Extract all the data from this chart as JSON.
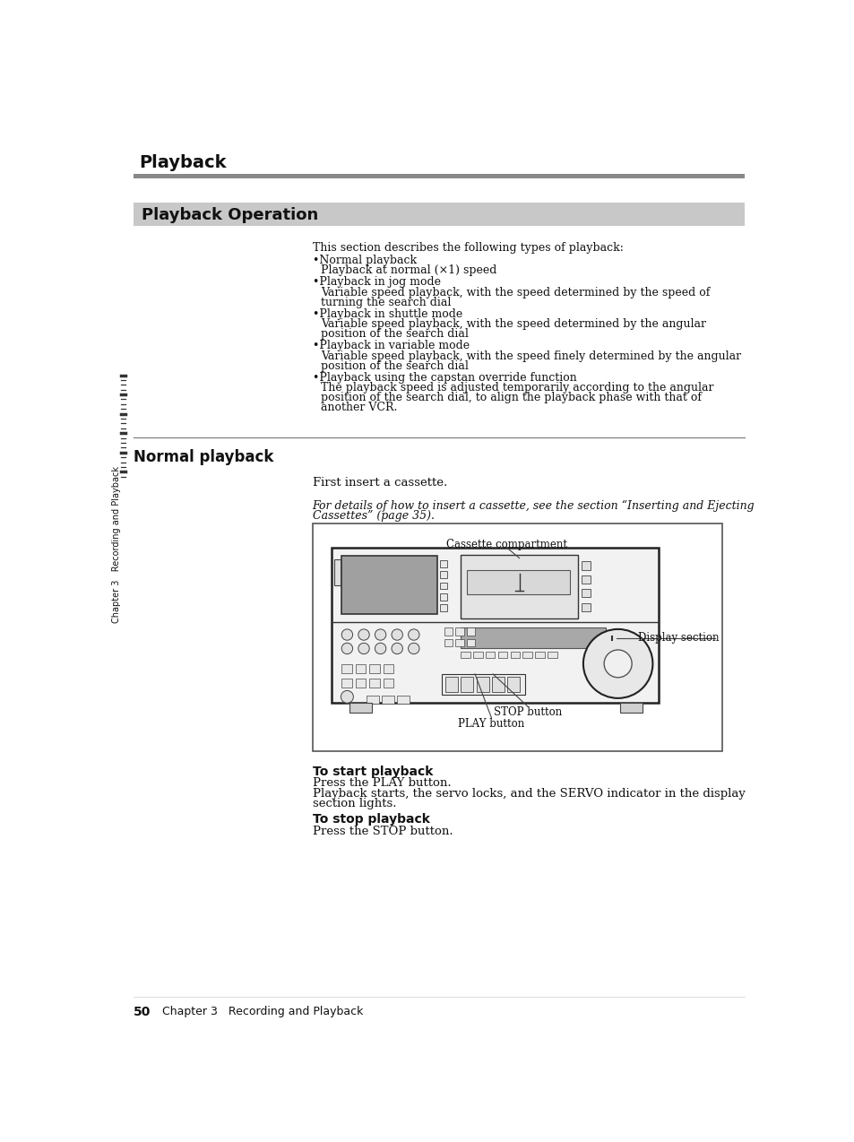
{
  "page_bg": "#ffffff",
  "title_bar_color": "#888888",
  "section_bg_color": "#c8c8c8",
  "title_text": "Playback",
  "section_title": "Playback Operation",
  "intro_text": "This section describes the following types of playback:",
  "bullet_items": [
    {
      "bullet": "Normal playback",
      "desc": "Playback at normal (×1) speed"
    },
    {
      "bullet": "Playback in jog mode",
      "desc": "Variable speed playback, with the speed determined by the speed of\nturning the search dial"
    },
    {
      "bullet": "Playback in shuttle mode",
      "desc": "Variable speed playback, with the speed determined by the angular\nposition of the search dial"
    },
    {
      "bullet": "Playback in variable mode",
      "desc": "Variable speed playback, with the speed finely determined by the angular\nposition of the search dial"
    },
    {
      "bullet": "Playback using the capstan override function",
      "desc": "The playback speed is adjusted temporarily according to the angular\nposition of the search dial, to align the playback phase with that of\nanother VCR."
    }
  ],
  "normal_playback_heading": "Normal playback",
  "first_insert": "First insert a cassette.",
  "italic_note_line1": "For details of how to insert a cassette, see the section “Inserting and Ejecting",
  "italic_note_line2": "Cassettes” (page 35).",
  "label_cassette": "Cassette compartment",
  "label_display": "Display section",
  "label_stop": "STOP button",
  "label_play": "PLAY button",
  "to_start_heading": "To start playback",
  "to_start_line1": "Press the PLAY button.",
  "to_start_line2": "Playback starts, the servo locks, and the SERVO indicator in the display",
  "to_start_line3": "section lights.",
  "to_stop_heading": "To stop playback",
  "to_stop_text": "Press the STOP button.",
  "side_label": "Chapter 3   Recording and Playback",
  "page_number": "50",
  "page_chapter": "Chapter 3   Recording and Playback",
  "text_color": "#111111",
  "diagram_border": "#555555",
  "diagram_bg": "#ffffff",
  "barcode_color": "#333333",
  "line_color": "#aaaaaa"
}
